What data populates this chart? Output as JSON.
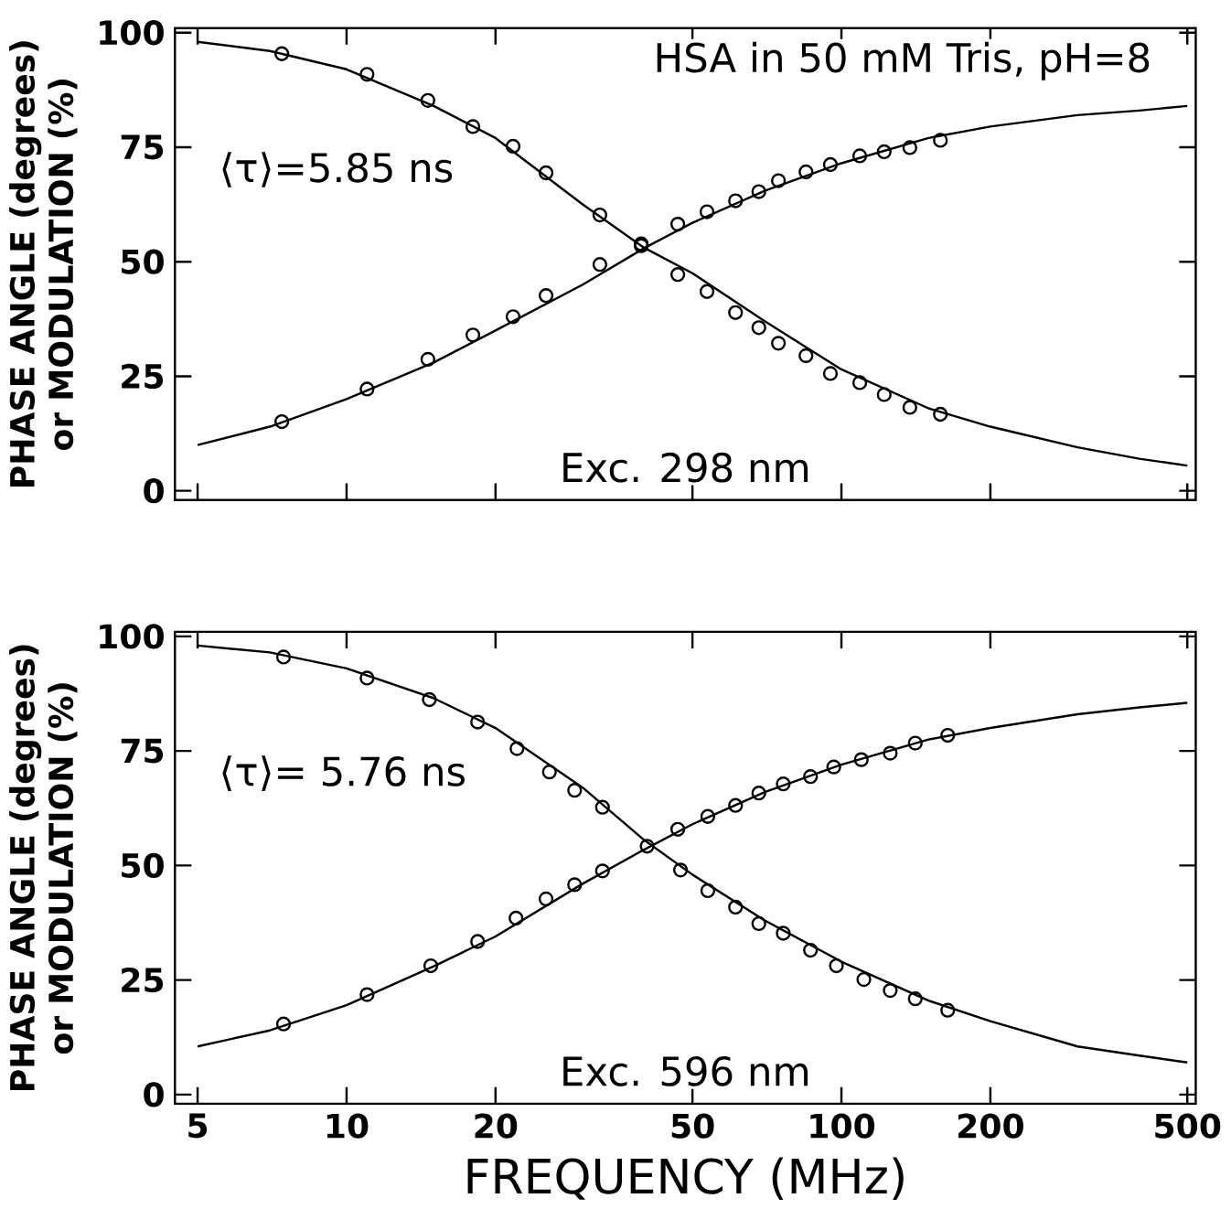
{
  "chart_data": [
    {
      "type": "line",
      "ylabel": "PHASE ANGLE (degrees) or MODULATION (%)",
      "log": "x",
      "xlim": [
        4.5,
        520
      ],
      "ylim": [
        -2,
        101
      ],
      "xticks": [
        5,
        10,
        20,
        50,
        100,
        200,
        500
      ],
      "yticks": [
        0,
        25,
        50,
        75,
        100
      ],
      "tick_labels": "y",
      "annotations": [
        "HSA in 50 mM Tris, pH=8",
        "⟨τ⟩=5.85 ns",
        "Exc. 298 nm"
      ],
      "series": [
        {
          "marker": "none",
          "color": "#000000",
          "x": [
            5,
            7,
            10,
            15,
            20,
            30,
            40,
            50,
            70,
            100,
            150,
            200,
            300,
            400,
            500
          ],
          "values": [
            10,
            14,
            20,
            28,
            35,
            45,
            53,
            58.5,
            65.5,
            71.5,
            77,
            79.5,
            82,
            83,
            84
          ]
        },
        {
          "marker": "none",
          "color": "#000000",
          "x": [
            5,
            7,
            10,
            15,
            20,
            30,
            40,
            50,
            70,
            100,
            150,
            200,
            300,
            400,
            500
          ],
          "values": [
            98,
            96,
            92,
            84,
            77,
            62.5,
            53,
            47.5,
            37,
            26.5,
            18,
            14,
            9.5,
            7,
            5.5
          ]
        },
        {
          "type": "scatter",
          "marker": "circle",
          "color": "#000000",
          "x": [
            7.4,
            11,
            14.6,
            18,
            21.7,
            25.3,
            32.5,
            39.4,
            46.7,
            53.5,
            61.1,
            68.1,
            74.6,
            84.8,
            95,
            108.9,
            122,
            137.5,
            158.5
          ],
          "values": [
            15.1,
            22.2,
            28.7,
            34,
            38,
            42.6,
            49.4,
            53.5,
            58.2,
            60.9,
            63.3,
            65.3,
            67.7,
            69.6,
            71.2,
            73.1,
            74,
            74.9,
            76.5
          ]
        },
        {
          "type": "scatter",
          "marker": "circle",
          "color": "#000000",
          "x": [
            7.4,
            11,
            14.6,
            18,
            21.7,
            25.3,
            32.5,
            39.4,
            46.7,
            53.5,
            61.1,
            68.1,
            74.6,
            84.8,
            95,
            108.9,
            122,
            137.5,
            158.5
          ],
          "values": [
            95.4,
            90.9,
            85.2,
            79.5,
            75.2,
            69.4,
            60.2,
            53.9,
            47.2,
            43.5,
            38.9,
            35.6,
            32.2,
            29.5,
            25.6,
            23.6,
            21,
            18.2,
            16.7
          ]
        }
      ]
    },
    {
      "type": "line",
      "xlabel": "FREQUENCY (MHz)",
      "ylabel": "PHASE ANGLE (degrees) or MODULATION (%)",
      "log": "x",
      "xlim": [
        4.5,
        520
      ],
      "ylim": [
        -2,
        101
      ],
      "xticks": [
        5,
        10,
        20,
        50,
        100,
        200,
        500
      ],
      "yticks": [
        0,
        25,
        50,
        75,
        100
      ],
      "annotations": [
        "⟨τ⟩= 5.76 ns",
        "Exc. 596 nm"
      ],
      "series": [
        {
          "marker": "none",
          "color": "#000000",
          "x": [
            5,
            7,
            10,
            15,
            20,
            30,
            40,
            50,
            70,
            100,
            150,
            200,
            300,
            400,
            500
          ],
          "values": [
            10.5,
            14,
            19.5,
            28,
            34.5,
            46,
            53.5,
            59,
            66,
            72,
            77.5,
            80,
            83,
            84.5,
            85.5
          ]
        },
        {
          "marker": "none",
          "color": "#000000",
          "x": [
            5,
            7,
            10,
            15,
            20,
            30,
            40,
            50,
            70,
            100,
            150,
            200,
            300,
            400,
            500
          ],
          "values": [
            98,
            96.5,
            93,
            86.5,
            80,
            67,
            55.5,
            48,
            38,
            29,
            20.5,
            16,
            10.5,
            8.5,
            7
          ]
        },
        {
          "type": "scatter",
          "marker": "circle",
          "color": "#000000",
          "x": [
            7.46,
            11,
            14.8,
            18.4,
            22,
            25.3,
            28.9,
            32.9,
            40.5,
            46.7,
            53.7,
            61.1,
            68.1,
            76.3,
            86.6,
            96.5,
            109.7,
            125.5,
            141,
            164
          ],
          "values": [
            15.4,
            21.8,
            28.1,
            33.4,
            38.5,
            42.7,
            45.8,
            48.8,
            54.2,
            57.9,
            60.7,
            63.1,
            65.8,
            67.8,
            69.4,
            71.5,
            73.1,
            74.5,
            76.7,
            78.4
          ]
        },
        {
          "type": "scatter",
          "marker": "circle",
          "color": "#000000",
          "x": [
            7.46,
            11,
            14.7,
            18.4,
            22.1,
            25.7,
            28.9,
            32.9,
            40.5,
            47.3,
            53.7,
            61.1,
            68.1,
            76.3,
            86.6,
            97.7,
            111,
            125.5,
            141,
            164
          ],
          "values": [
            95.5,
            90.9,
            86.2,
            81.3,
            75.5,
            70.4,
            66.4,
            62.7,
            null,
            49,
            44.5,
            40.9,
            37.3,
            35.2,
            31.5,
            28.1,
            25.1,
            22.7,
            20.9,
            18.4
          ]
        }
      ]
    }
  ]
}
